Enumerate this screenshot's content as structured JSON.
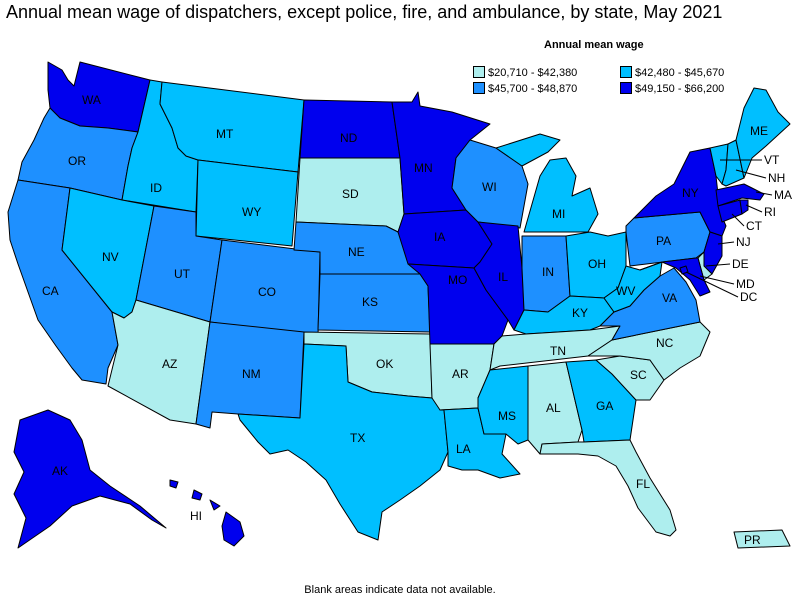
{
  "title": "Annual mean wage of dispatchers, except police, fire, and ambulance, by state, May 2021",
  "legend": {
    "title": "Annual mean wage",
    "items": [
      {
        "label": "$20,710 - $42,380",
        "color": "#aeeeee"
      },
      {
        "label": "$42,480 - $45,670",
        "color": "#00bfff"
      },
      {
        "label": "$45,700 - $48,870",
        "color": "#1e90ff"
      },
      {
        "label": "$49,150 - $66,200",
        "color": "#0000ee"
      }
    ]
  },
  "footnote": "Blank areas indicate data not available.",
  "states": {
    "WA": {
      "label": "WA",
      "tier": 3
    },
    "OR": {
      "label": "OR",
      "tier": 2
    },
    "CA": {
      "label": "CA",
      "tier": 2
    },
    "ID": {
      "label": "ID",
      "tier": 1
    },
    "NV": {
      "label": "NV",
      "tier": 1
    },
    "MT": {
      "label": "MT",
      "tier": 1
    },
    "WY": {
      "label": "WY",
      "tier": 1
    },
    "UT": {
      "label": "UT",
      "tier": 2
    },
    "AZ": {
      "label": "AZ",
      "tier": 0
    },
    "CO": {
      "label": "CO",
      "tier": 2
    },
    "NM": {
      "label": "NM",
      "tier": 2
    },
    "ND": {
      "label": "ND",
      "tier": 3
    },
    "SD": {
      "label": "SD",
      "tier": 0
    },
    "NE": {
      "label": "NE",
      "tier": 2
    },
    "KS": {
      "label": "KS",
      "tier": 2
    },
    "OK": {
      "label": "OK",
      "tier": 0
    },
    "TX": {
      "label": "TX",
      "tier": 1
    },
    "MN": {
      "label": "MN",
      "tier": 3
    },
    "IA": {
      "label": "IA",
      "tier": 3
    },
    "MO": {
      "label": "MO",
      "tier": 3
    },
    "AR": {
      "label": "AR",
      "tier": 0
    },
    "LA": {
      "label": "LA",
      "tier": 1
    },
    "WI": {
      "label": "WI",
      "tier": 2
    },
    "IL": {
      "label": "IL",
      "tier": 3
    },
    "MI": {
      "label": "MI",
      "tier": 1
    },
    "IN": {
      "label": "IN",
      "tier": 2
    },
    "OH": {
      "label": "OH",
      "tier": 1
    },
    "KY": {
      "label": "KY",
      "tier": 1
    },
    "TN": {
      "label": "TN",
      "tier": 0
    },
    "MS": {
      "label": "MS",
      "tier": 1
    },
    "AL": {
      "label": "AL",
      "tier": 0
    },
    "GA": {
      "label": "GA",
      "tier": 1
    },
    "FL": {
      "label": "FL",
      "tier": 0
    },
    "SC": {
      "label": "SC",
      "tier": 0
    },
    "NC": {
      "label": "NC",
      "tier": 0
    },
    "VA": {
      "label": "VA",
      "tier": 2
    },
    "WV": {
      "label": "WV",
      "tier": 1
    },
    "PA": {
      "label": "PA",
      "tier": 2
    },
    "NY": {
      "label": "NY",
      "tier": 3
    },
    "VT": {
      "label": "VT",
      "tier": 1
    },
    "NH": {
      "label": "NH",
      "tier": 1
    },
    "ME": {
      "label": "ME",
      "tier": 1
    },
    "MA": {
      "label": "MA",
      "tier": 3
    },
    "RI": {
      "label": "RI",
      "tier": 3
    },
    "CT": {
      "label": "CT",
      "tier": 3
    },
    "NJ": {
      "label": "NJ",
      "tier": 3
    },
    "DE": {
      "label": "DE",
      "tier": 0
    },
    "MD": {
      "label": "MD",
      "tier": 3
    },
    "DC": {
      "label": "DC",
      "tier": 3
    },
    "AK": {
      "label": "AK",
      "tier": 3
    },
    "HI": {
      "label": "HI",
      "tier": 3
    },
    "PR": {
      "label": "PR",
      "tier": 0
    }
  }
}
